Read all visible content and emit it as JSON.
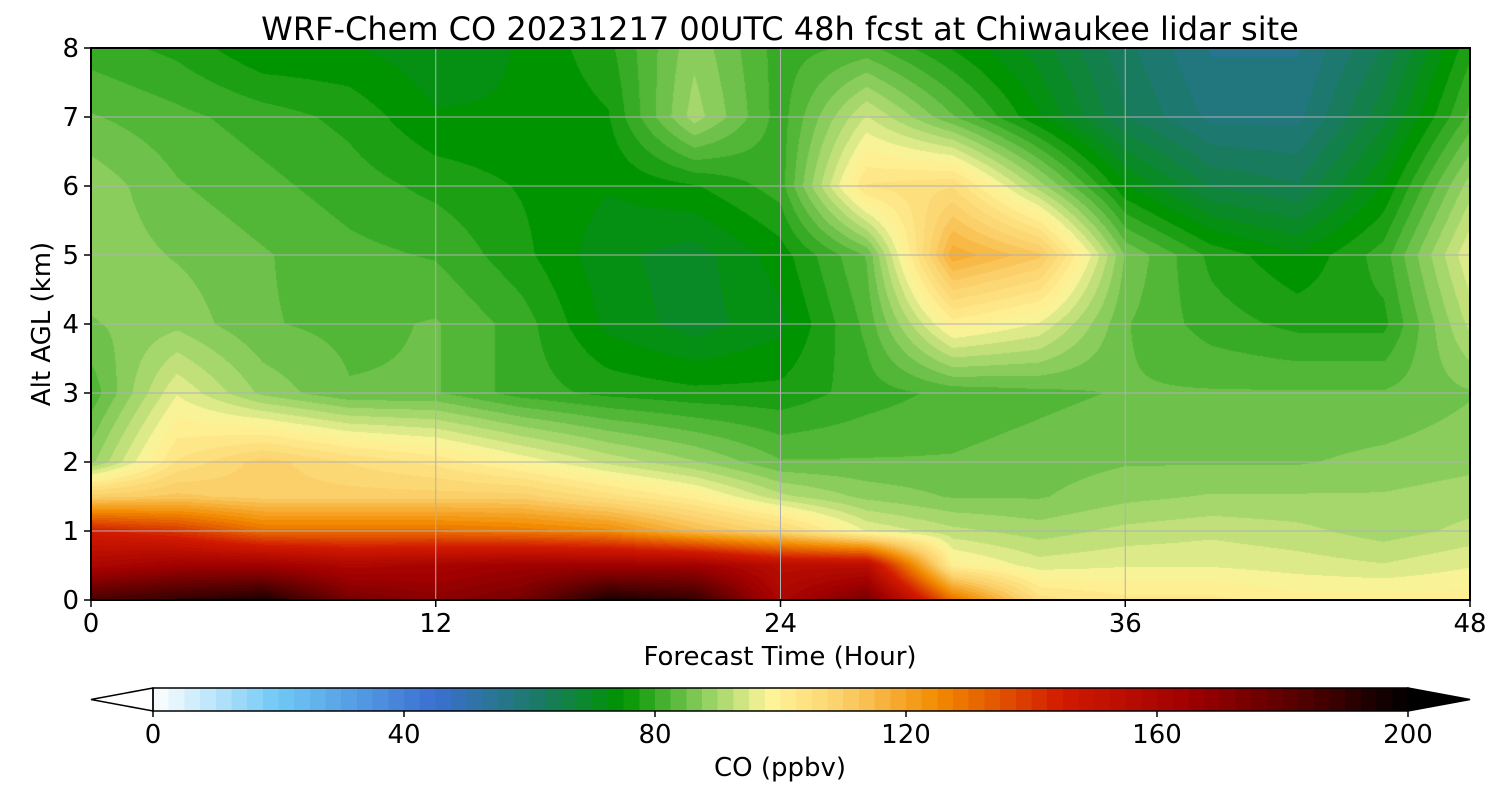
{
  "chart_data": {
    "type": "heatmap",
    "title": "WRF-Chem CO  20231217 00UTC 48h fcst at Chiwaukee lidar site",
    "xlabel": "Forecast Time (Hour)",
    "ylabel": "Alt AGL (km)",
    "xlim": [
      0,
      48
    ],
    "ylim": [
      0,
      8
    ],
    "xticks": [
      0,
      12,
      24,
      36,
      48
    ],
    "yticks": [
      0,
      1,
      2,
      3,
      4,
      5,
      6,
      7,
      8
    ],
    "grid": true,
    "colorbar": {
      "label": "CO  (ppbv)",
      "orientation": "horizontal",
      "extend": "both",
      "range": [
        0,
        200
      ],
      "ticks": [
        0,
        40,
        80,
        120,
        160,
        200
      ],
      "colors": [
        {
          "v": 0,
          "c": "#ffffff"
        },
        {
          "v": 20,
          "c": "#6fc8f5"
        },
        {
          "v": 45,
          "c": "#3b6fd1"
        },
        {
          "v": 62,
          "c": "#197a62"
        },
        {
          "v": 75,
          "c": "#009400"
        },
        {
          "v": 88,
          "c": "#8fcf60"
        },
        {
          "v": 98,
          "c": "#fff59a"
        },
        {
          "v": 110,
          "c": "#fbd06a"
        },
        {
          "v": 125,
          "c": "#f28b00"
        },
        {
          "v": 145,
          "c": "#d11a00"
        },
        {
          "v": 165,
          "c": "#a00000"
        },
        {
          "v": 185,
          "c": "#4a0000"
        },
        {
          "v": 200,
          "c": "#000000"
        }
      ]
    },
    "field": {
      "x": [
        0,
        3,
        6,
        9,
        12,
        15,
        18,
        21,
        24,
        27,
        30,
        33,
        36,
        39,
        42,
        45,
        48
      ],
      "y": [
        0,
        0.5,
        1,
        1.5,
        2,
        3,
        4,
        5,
        6,
        7,
        8
      ],
      "values": [
        [
          185,
          190,
          195,
          175,
          170,
          175,
          195,
          190,
          160,
          175,
          130,
          105,
          102,
          102,
          100,
          100,
          100
        ],
        [
          160,
          165,
          165,
          160,
          162,
          165,
          165,
          165,
          155,
          155,
          100,
          95,
          96,
          96,
          95,
          94,
          96
        ],
        [
          145,
          140,
          130,
          130,
          130,
          128,
          125,
          115,
          108,
          96,
          92,
          90,
          92,
          93,
          92,
          90,
          92
        ],
        [
          110,
          112,
          110,
          110,
          110,
          110,
          105,
          100,
          92,
          88,
          86,
          86,
          88,
          89,
          89,
          89,
          90
        ],
        [
          88,
          104,
          110,
          106,
          103,
          98,
          93,
          89,
          84,
          84,
          84,
          85,
          86,
          86,
          86,
          87,
          88
        ],
        [
          82,
          96,
          88,
          84,
          84,
          80,
          78,
          77,
          77,
          80,
          82,
          83,
          84,
          84,
          84,
          84,
          86
        ],
        [
          86,
          88,
          84,
          83,
          84,
          80,
          73,
          70,
          73,
          82,
          100,
          96,
          84,
          80,
          78,
          78,
          92
        ],
        [
          88,
          86,
          84,
          82,
          81,
          77,
          72,
          70,
          75,
          84,
          118,
          112,
          86,
          78,
          74,
          80,
          96
        ],
        [
          88,
          84,
          82,
          80,
          78,
          76,
          74,
          76,
          80,
          104,
          106,
          90,
          74,
          66,
          64,
          74,
          90
        ],
        [
          84,
          82,
          80,
          78,
          74,
          74,
          76,
          90,
          80,
          94,
          84,
          74,
          64,
          58,
          58,
          68,
          82
        ],
        [
          80,
          78,
          74,
          74,
          72,
          74,
          78,
          88,
          80,
          82,
          76,
          70,
          62,
          56,
          56,
          64,
          78
        ]
      ]
    }
  }
}
